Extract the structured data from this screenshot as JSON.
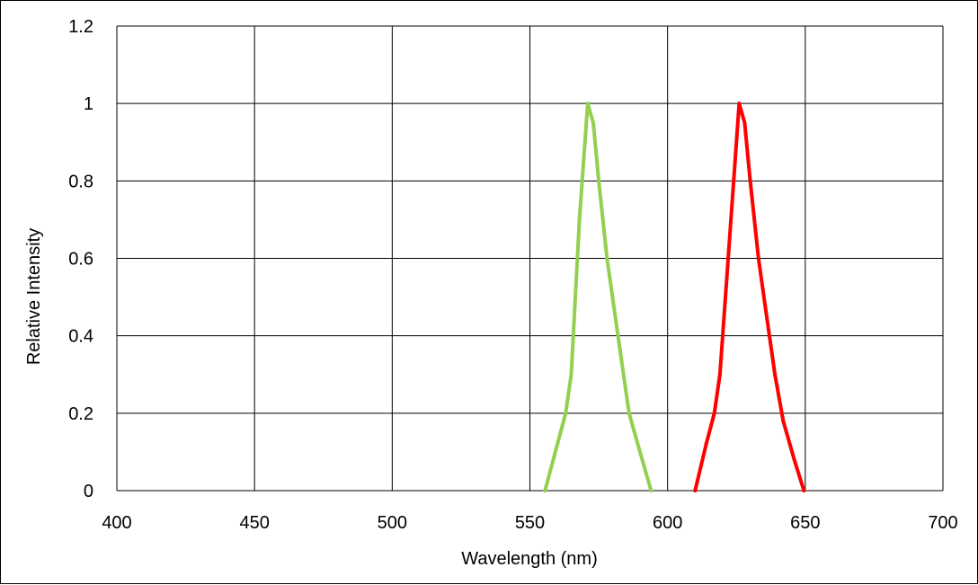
{
  "chart_data": {
    "type": "line",
    "title": "",
    "xlabel": "Wavelength (nm)",
    "ylabel": "Relative Intensity",
    "xlim": [
      400,
      700
    ],
    "ylim": [
      0,
      1.2
    ],
    "x_ticks": [
      "400",
      "450",
      "500",
      "550",
      "600",
      "650",
      "700"
    ],
    "y_ticks": [
      "0",
      "0.2",
      "0.4",
      "0.6",
      "0.8",
      "1",
      "1.2"
    ],
    "grid": true,
    "legend": "none",
    "series": [
      {
        "color": "#92d050",
        "x": [
          555.5,
          560,
          563,
          565,
          568,
          571,
          573,
          575,
          578,
          580,
          583,
          586,
          590,
          594
        ],
        "y": [
          0,
          0.12,
          0.2,
          0.3,
          0.7,
          1.0,
          0.95,
          0.8,
          0.6,
          0.5,
          0.35,
          0.2,
          0.1,
          0
        ]
      },
      {
        "color": "#ff0000",
        "x": [
          610,
          614,
          617,
          619,
          622,
          626,
          628,
          630,
          633,
          636,
          639,
          642,
          646,
          649.5
        ],
        "y": [
          0,
          0.12,
          0.2,
          0.3,
          0.6,
          1.0,
          0.95,
          0.8,
          0.6,
          0.45,
          0.3,
          0.18,
          0.08,
          0
        ]
      }
    ]
  }
}
